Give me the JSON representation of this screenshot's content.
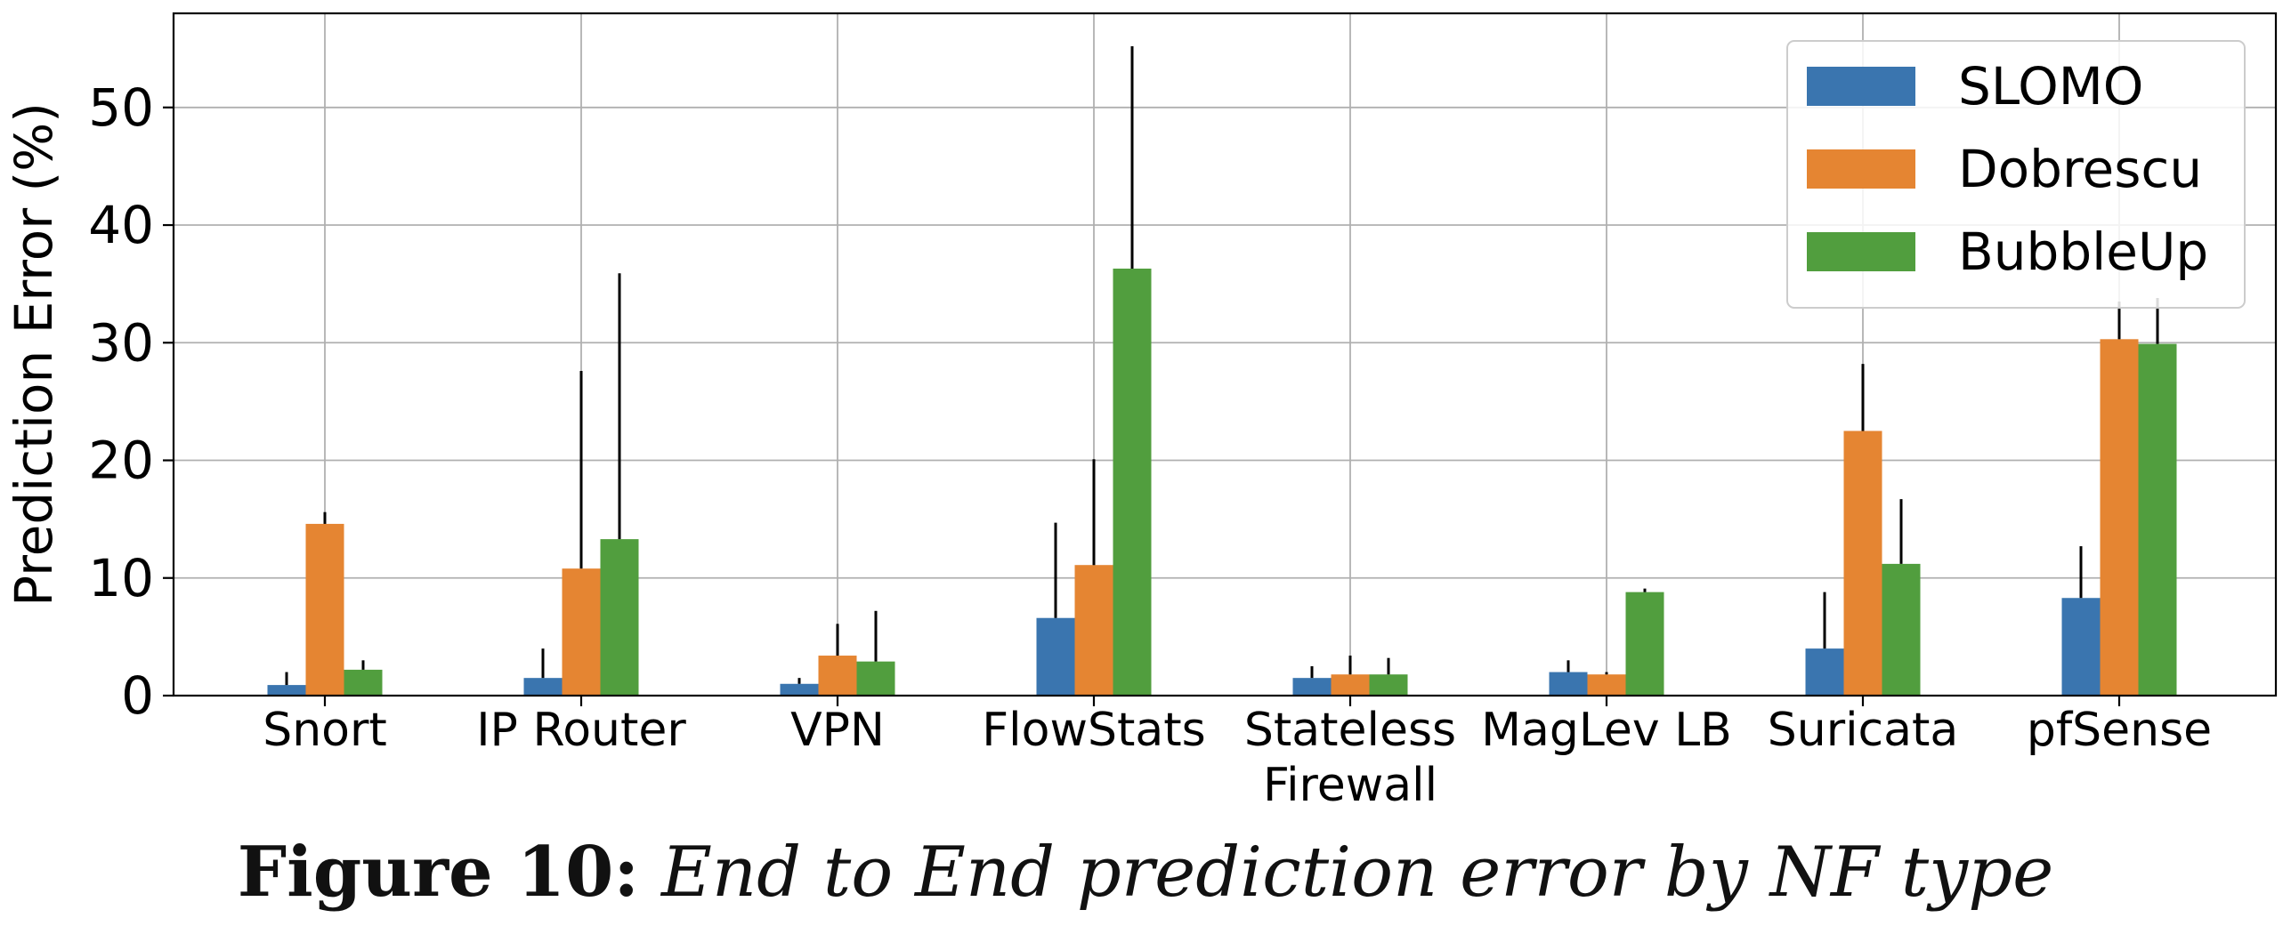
{
  "chart_data": {
    "type": "bar",
    "categories": [
      [
        "Snort"
      ],
      [
        "IP Router"
      ],
      [
        "VPN"
      ],
      [
        "FlowStats"
      ],
      [
        "Stateless",
        "Firewall"
      ],
      [
        "MagLev LB"
      ],
      [
        "Suricata"
      ],
      [
        "pfSense"
      ]
    ],
    "series": [
      {
        "name": "SLOMO",
        "color": "#3a75af",
        "values": [
          0.9,
          1.5,
          1.0,
          6.6,
          1.5,
          2.0,
          4.0,
          8.3
        ],
        "error_upper": [
          2.0,
          4.0,
          1.5,
          14.7,
          2.5,
          3.0,
          8.8,
          12.7
        ]
      },
      {
        "name": "Dobrescu",
        "color": "#e58532",
        "values": [
          14.6,
          10.8,
          3.4,
          11.1,
          1.8,
          1.8,
          22.5,
          30.3
        ],
        "error_upper": [
          15.6,
          27.6,
          6.1,
          20.1,
          3.4,
          2.0,
          28.2,
          33.5
        ]
      },
      {
        "name": "BubbleUp",
        "color": "#519e3e",
        "values": [
          2.2,
          13.3,
          2.9,
          36.3,
          1.8,
          8.8,
          11.2,
          29.9
        ],
        "error_upper": [
          3.0,
          35.9,
          7.2,
          55.2,
          3.2,
          9.1,
          16.7,
          33.8
        ]
      }
    ],
    "ylabel": "Prediction Error (%)",
    "xlabel": "",
    "ylim": [
      0,
      58
    ],
    "yticks": [
      0,
      10,
      20,
      30,
      40,
      50
    ],
    "grid": true,
    "legend_position": "top-right"
  },
  "caption": {
    "label": "Figure 10:",
    "text": "End to End prediction error by NF type"
  }
}
